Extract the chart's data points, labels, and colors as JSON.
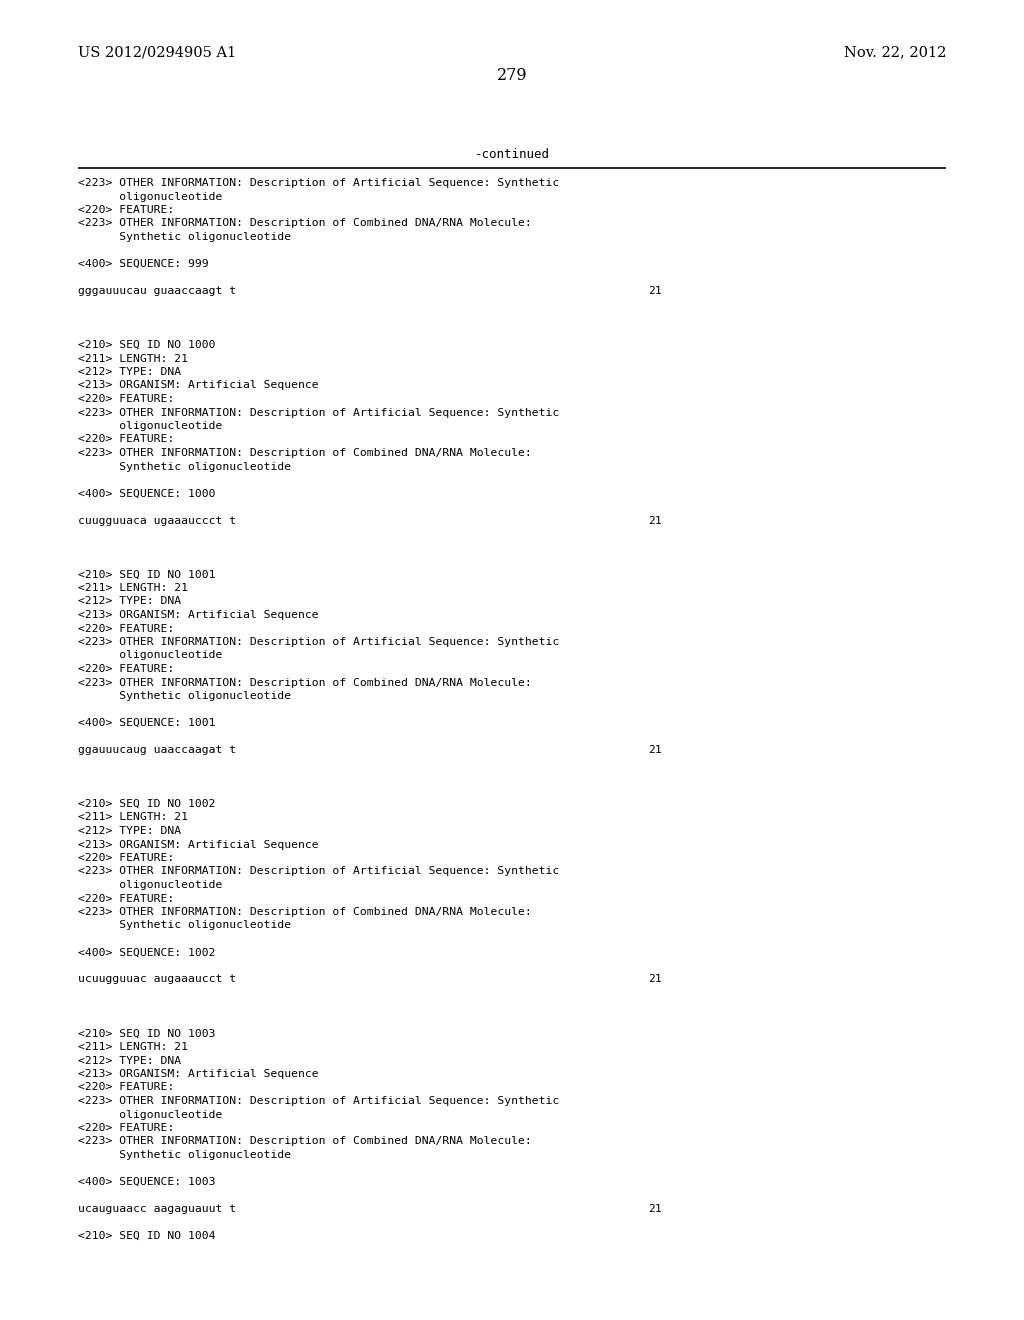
{
  "page_left": "US 2012/0294905 A1",
  "page_right": "Nov. 22, 2012",
  "page_number": "279",
  "continued_label": "-continued",
  "background_color": "#ffffff",
  "text_color": "#000000",
  "lines": [
    {
      "text": "<223> OTHER INFORMATION: Description of Artificial Sequence: Synthetic",
      "num": ""
    },
    {
      "text": "      oligonucleotide",
      "num": ""
    },
    {
      "text": "<220> FEATURE:",
      "num": ""
    },
    {
      "text": "<223> OTHER INFORMATION: Description of Combined DNA/RNA Molecule:",
      "num": ""
    },
    {
      "text": "      Synthetic oligonucleotide",
      "num": ""
    },
    {
      "text": "",
      "num": ""
    },
    {
      "text": "<400> SEQUENCE: 999",
      "num": ""
    },
    {
      "text": "",
      "num": ""
    },
    {
      "text": "gggauuucau guaaccaagt t",
      "num": "21"
    },
    {
      "text": "",
      "num": ""
    },
    {
      "text": "",
      "num": ""
    },
    {
      "text": "",
      "num": ""
    },
    {
      "text": "<210> SEQ ID NO 1000",
      "num": ""
    },
    {
      "text": "<211> LENGTH: 21",
      "num": ""
    },
    {
      "text": "<212> TYPE: DNA",
      "num": ""
    },
    {
      "text": "<213> ORGANISM: Artificial Sequence",
      "num": ""
    },
    {
      "text": "<220> FEATURE:",
      "num": ""
    },
    {
      "text": "<223> OTHER INFORMATION: Description of Artificial Sequence: Synthetic",
      "num": ""
    },
    {
      "text": "      oligonucleotide",
      "num": ""
    },
    {
      "text": "<220> FEATURE:",
      "num": ""
    },
    {
      "text": "<223> OTHER INFORMATION: Description of Combined DNA/RNA Molecule:",
      "num": ""
    },
    {
      "text": "      Synthetic oligonucleotide",
      "num": ""
    },
    {
      "text": "",
      "num": ""
    },
    {
      "text": "<400> SEQUENCE: 1000",
      "num": ""
    },
    {
      "text": "",
      "num": ""
    },
    {
      "text": "cuugguuaca ugaaauccct t",
      "num": "21"
    },
    {
      "text": "",
      "num": ""
    },
    {
      "text": "",
      "num": ""
    },
    {
      "text": "",
      "num": ""
    },
    {
      "text": "<210> SEQ ID NO 1001",
      "num": ""
    },
    {
      "text": "<211> LENGTH: 21",
      "num": ""
    },
    {
      "text": "<212> TYPE: DNA",
      "num": ""
    },
    {
      "text": "<213> ORGANISM: Artificial Sequence",
      "num": ""
    },
    {
      "text": "<220> FEATURE:",
      "num": ""
    },
    {
      "text": "<223> OTHER INFORMATION: Description of Artificial Sequence: Synthetic",
      "num": ""
    },
    {
      "text": "      oligonucleotide",
      "num": ""
    },
    {
      "text": "<220> FEATURE:",
      "num": ""
    },
    {
      "text": "<223> OTHER INFORMATION: Description of Combined DNA/RNA Molecule:",
      "num": ""
    },
    {
      "text": "      Synthetic oligonucleotide",
      "num": ""
    },
    {
      "text": "",
      "num": ""
    },
    {
      "text": "<400> SEQUENCE: 1001",
      "num": ""
    },
    {
      "text": "",
      "num": ""
    },
    {
      "text": "ggauuucaug uaaccaagat t",
      "num": "21"
    },
    {
      "text": "",
      "num": ""
    },
    {
      "text": "",
      "num": ""
    },
    {
      "text": "",
      "num": ""
    },
    {
      "text": "<210> SEQ ID NO 1002",
      "num": ""
    },
    {
      "text": "<211> LENGTH: 21",
      "num": ""
    },
    {
      "text": "<212> TYPE: DNA",
      "num": ""
    },
    {
      "text": "<213> ORGANISM: Artificial Sequence",
      "num": ""
    },
    {
      "text": "<220> FEATURE:",
      "num": ""
    },
    {
      "text": "<223> OTHER INFORMATION: Description of Artificial Sequence: Synthetic",
      "num": ""
    },
    {
      "text": "      oligonucleotide",
      "num": ""
    },
    {
      "text": "<220> FEATURE:",
      "num": ""
    },
    {
      "text": "<223> OTHER INFORMATION: Description of Combined DNA/RNA Molecule:",
      "num": ""
    },
    {
      "text": "      Synthetic oligonucleotide",
      "num": ""
    },
    {
      "text": "",
      "num": ""
    },
    {
      "text": "<400> SEQUENCE: 1002",
      "num": ""
    },
    {
      "text": "",
      "num": ""
    },
    {
      "text": "ucuugguuac augaaaucct t",
      "num": "21"
    },
    {
      "text": "",
      "num": ""
    },
    {
      "text": "",
      "num": ""
    },
    {
      "text": "",
      "num": ""
    },
    {
      "text": "<210> SEQ ID NO 1003",
      "num": ""
    },
    {
      "text": "<211> LENGTH: 21",
      "num": ""
    },
    {
      "text": "<212> TYPE: DNA",
      "num": ""
    },
    {
      "text": "<213> ORGANISM: Artificial Sequence",
      "num": ""
    },
    {
      "text": "<220> FEATURE:",
      "num": ""
    },
    {
      "text": "<223> OTHER INFORMATION: Description of Artificial Sequence: Synthetic",
      "num": ""
    },
    {
      "text": "      oligonucleotide",
      "num": ""
    },
    {
      "text": "<220> FEATURE:",
      "num": ""
    },
    {
      "text": "<223> OTHER INFORMATION: Description of Combined DNA/RNA Molecule:",
      "num": ""
    },
    {
      "text": "      Synthetic oligonucleotide",
      "num": ""
    },
    {
      "text": "",
      "num": ""
    },
    {
      "text": "<400> SEQUENCE: 1003",
      "num": ""
    },
    {
      "text": "",
      "num": ""
    },
    {
      "text": "ucauguaacc aagaguauut t",
      "num": "21"
    },
    {
      "text": "",
      "num": ""
    },
    {
      "text": "<210> SEQ ID NO 1004",
      "num": ""
    }
  ]
}
